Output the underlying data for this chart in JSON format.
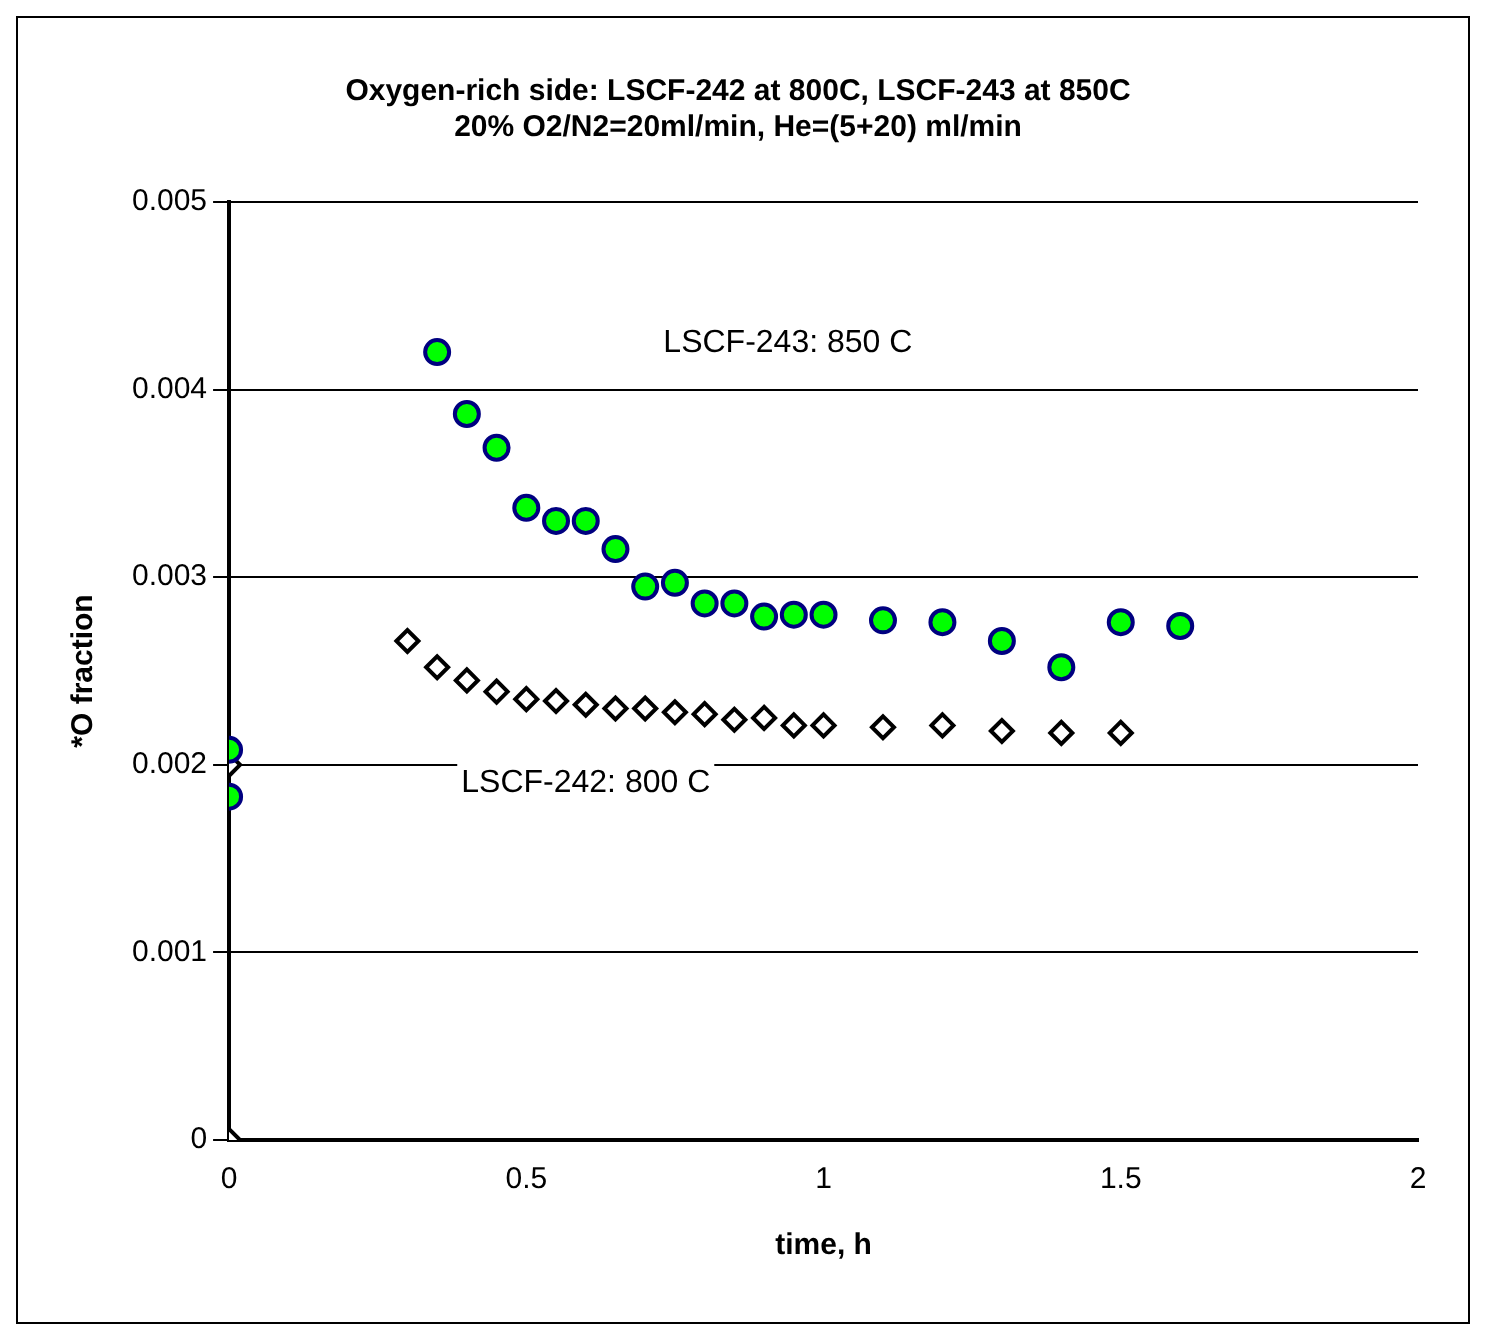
{
  "chart_data": {
    "type": "scatter",
    "title": "Oxygen-rich side: LSCF-242 at 800C, LSCF-243 at 850C\n20% O2/N2=20ml/min, He=(5+20) ml/min",
    "xlabel": "time, h",
    "ylabel": "*O fraction",
    "xlim": [
      0,
      2
    ],
    "xticks": [
      0,
      0.5,
      1,
      1.5,
      2
    ],
    "ylim": [
      0,
      0.005
    ],
    "yticks": [
      0,
      0.001,
      0.002,
      0.003,
      0.004,
      0.005
    ],
    "grid": "y",
    "legend": false,
    "series": [
      {
        "color": "#00ff00",
        "marker": "circle",
        "x": [
          0,
          0,
          0.35,
          0.4,
          0.45,
          0.5,
          0.55,
          0.6,
          0.65,
          0.7,
          0.75,
          0.8,
          0.85,
          0.9,
          0.95,
          1.0,
          1.1,
          1.2,
          1.3,
          1.4,
          1.5,
          1.6
        ],
        "values": [
          0.00208,
          0.00183,
          0.0042,
          0.00387,
          0.00369,
          0.00337,
          0.0033,
          0.0033,
          0.00315,
          0.00295,
          0.00297,
          0.00286,
          0.00286,
          0.00279,
          0.0028,
          0.0028,
          0.00277,
          0.00276,
          0.00266,
          0.00252,
          0.00276,
          0.00274
        ]
      },
      {
        "color": "#ffffff",
        "marker": "diamond",
        "x": [
          0,
          0,
          0.3,
          0.35,
          0.4,
          0.45,
          0.5,
          0.55,
          0.6,
          0.65,
          0.7,
          0.75,
          0.8,
          0.85,
          0.9,
          0.95,
          1.0,
          1.1,
          1.2,
          1.3,
          1.4,
          1.5
        ],
        "values": [
          0.002,
          0,
          0.00266,
          0.00252,
          0.00245,
          0.00239,
          0.00235,
          0.00234,
          0.00232,
          0.0023,
          0.0023,
          0.00228,
          0.00227,
          0.00224,
          0.00225,
          0.00221,
          0.00221,
          0.0022,
          0.00221,
          0.00218,
          0.00217,
          0.00217
        ]
      }
    ],
    "annotations": [
      "LSCF-243: 850 C",
      "LSCF-242: 800 C"
    ]
  }
}
